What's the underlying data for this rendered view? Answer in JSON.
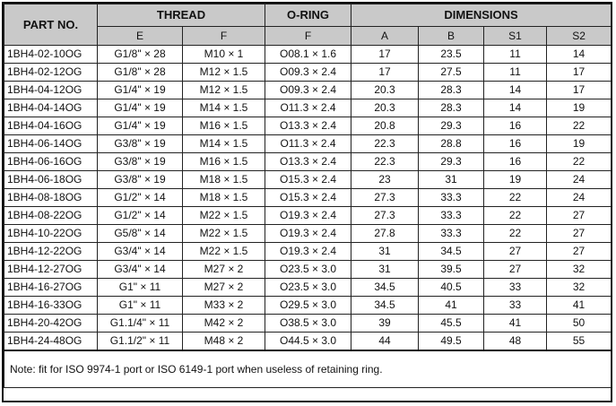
{
  "headers": {
    "part_no": "PART NO.",
    "thread": "THREAD",
    "oring": "O-RING",
    "dimensions": "DIMENSIONS",
    "sub": [
      "E",
      "F",
      "F",
      "A",
      "B",
      "S1",
      "S2"
    ]
  },
  "rows": [
    [
      "1BH4-02-10OG",
      "G1/8\" × 28",
      "M10 × 1",
      "O08.1 × 1.6",
      "17",
      "23.5",
      "11",
      "14"
    ],
    [
      "1BH4-02-12OG",
      "G1/8\" × 28",
      "M12 × 1.5",
      "O09.3 × 2.4",
      "17",
      "27.5",
      "11",
      "17"
    ],
    [
      "1BH4-04-12OG",
      "G1/4\" × 19",
      "M12 × 1.5",
      "O09.3 × 2.4",
      "20.3",
      "28.3",
      "14",
      "17"
    ],
    [
      "1BH4-04-14OG",
      "G1/4\" × 19",
      "M14 × 1.5",
      "O11.3 × 2.4",
      "20.3",
      "28.3",
      "14",
      "19"
    ],
    [
      "1BH4-04-16OG",
      "G1/4\" × 19",
      "M16 × 1.5",
      "O13.3 × 2.4",
      "20.8",
      "29.3",
      "16",
      "22"
    ],
    [
      "1BH4-06-14OG",
      "G3/8\" × 19",
      "M14 × 1.5",
      "O11.3 × 2.4",
      "22.3",
      "28.8",
      "16",
      "19"
    ],
    [
      "1BH4-06-16OG",
      "G3/8\" × 19",
      "M16 × 1.5",
      "O13.3 × 2.4",
      "22.3",
      "29.3",
      "16",
      "22"
    ],
    [
      "1BH4-06-18OG",
      "G3/8\" × 19",
      "M18 × 1.5",
      "O15.3 × 2.4",
      "23",
      "31",
      "19",
      "24"
    ],
    [
      "1BH4-08-18OG",
      "G1/2\" × 14",
      "M18 × 1.5",
      "O15.3 × 2.4",
      "27.3",
      "33.3",
      "22",
      "24"
    ],
    [
      "1BH4-08-22OG",
      "G1/2\" × 14",
      "M22 × 1.5",
      "O19.3 × 2.4",
      "27.3",
      "33.3",
      "22",
      "27"
    ],
    [
      "1BH4-10-22OG",
      "G5/8\" × 14",
      "M22 × 1.5",
      "O19.3 × 2.4",
      "27.8",
      "33.3",
      "22",
      "27"
    ],
    [
      "1BH4-12-22OG",
      "G3/4\" × 14",
      "M22 × 1.5",
      "O19.3 × 2.4",
      "31",
      "34.5",
      "27",
      "27"
    ],
    [
      "1BH4-12-27OG",
      "G3/4\" × 14",
      "M27 × 2",
      "O23.5 × 3.0",
      "31",
      "39.5",
      "27",
      "32"
    ],
    [
      "1BH4-16-27OG",
      "G1\" × 11",
      "M27 × 2",
      "O23.5 × 3.0",
      "34.5",
      "40.5",
      "33",
      "32"
    ],
    [
      "1BH4-16-33OG",
      "G1\" × 11",
      "M33 × 2",
      "O29.5 × 3.0",
      "34.5",
      "41",
      "33",
      "41"
    ],
    [
      "1BH4-20-42OG",
      "G1.1/4\" × 11",
      "M42 × 2",
      "O38.5 × 3.0",
      "39",
      "45.5",
      "41",
      "50"
    ],
    [
      "1BH4-24-48OG",
      "G1.1/2\" × 11",
      "M48 × 2",
      "O44.5 × 3.0",
      "44",
      "49.5",
      "48",
      "55"
    ]
  ],
  "note": "Note: fit for ISO 9974-1 port or ISO 6149-1 port when useless of retaining ring."
}
